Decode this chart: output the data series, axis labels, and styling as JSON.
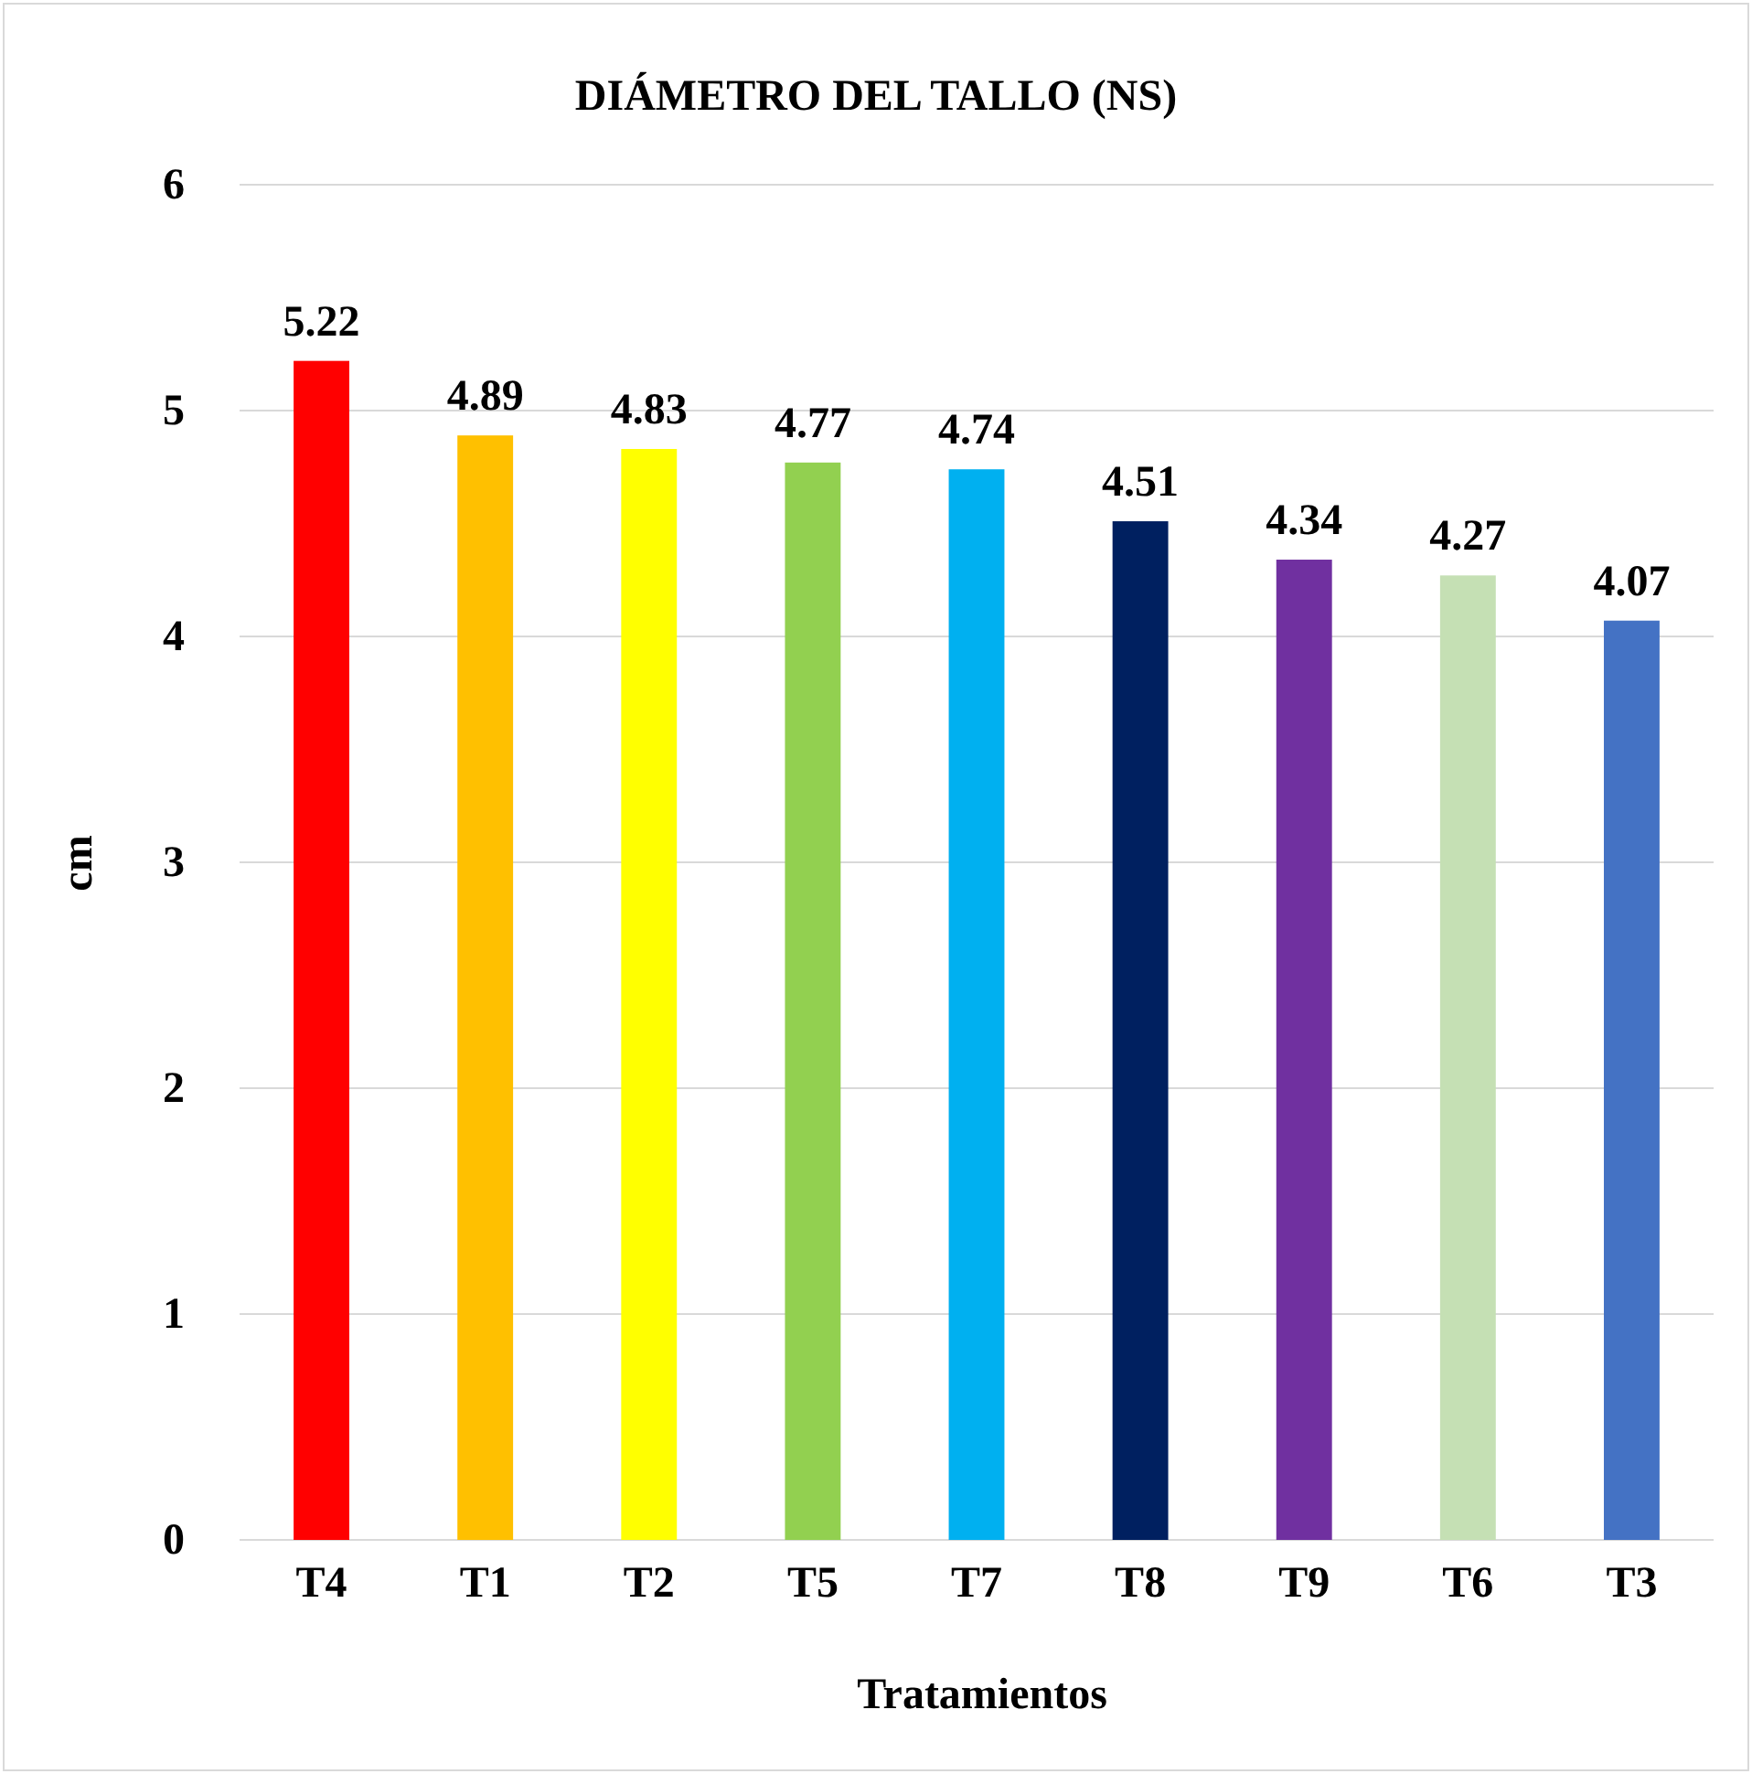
{
  "chart_data": {
    "type": "bar",
    "title": "DIÁMETRO DEL TALLO (NS)",
    "xlabel": "Tratamientos",
    "ylabel": "cm",
    "categories": [
      "T4",
      "T1",
      "T2",
      "T5",
      "T7",
      "T8",
      "T9",
      "T6",
      "T3"
    ],
    "values": [
      5.22,
      4.89,
      4.83,
      4.77,
      4.74,
      4.51,
      4.34,
      4.27,
      4.07
    ],
    "colors": [
      "#ff0000",
      "#ffc000",
      "#ffff00",
      "#92d050",
      "#00b0f0",
      "#002060",
      "#7030a0",
      "#c5e0b4",
      "#4472c4"
    ],
    "ylim": [
      0,
      6
    ],
    "yticks": [
      0,
      1,
      2,
      3,
      4,
      5,
      6
    ],
    "grid": "y",
    "data_labels": true
  }
}
